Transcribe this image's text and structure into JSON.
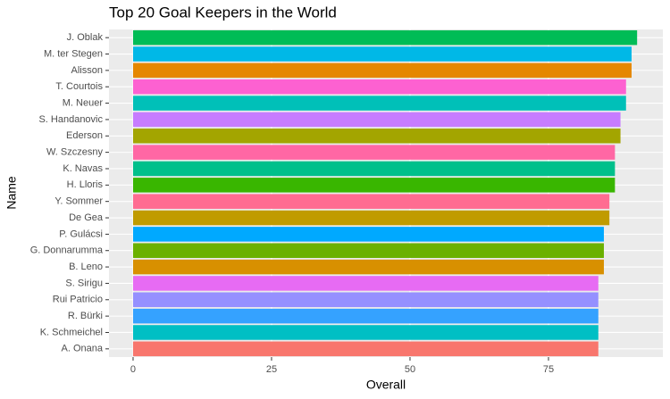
{
  "chart_data": {
    "type": "barh",
    "title": "Top 20 Goal Keepers in the World",
    "x_label": "Overall",
    "y_label": "Name",
    "categories": [
      "J. Oblak",
      "M. ter Stegen",
      "Alisson",
      "T. Courtois",
      "M. Neuer",
      "S. Handanovic",
      "Ederson",
      "W. Szczesny",
      "K. Navas",
      "H. Lloris",
      "Y. Sommer",
      "De Gea",
      "P. Gulácsi",
      "G. Donnarumma",
      "B. Leno",
      "S. Sirigu",
      "Rui Patricio",
      "R. Bürki",
      "K. Schmeichel",
      "A. Onana"
    ],
    "values": [
      91,
      90,
      90,
      89,
      89,
      88,
      88,
      87,
      87,
      87,
      86,
      86,
      85,
      85,
      85,
      84,
      84,
      84,
      84,
      84
    ],
    "colors": [
      "#00BC56",
      "#00B8E7",
      "#E58700",
      "#FD61D1",
      "#00C0B8",
      "#C77CFF",
      "#A3A500",
      "#FF67A4",
      "#00C08B",
      "#39B600",
      "#FF6C91",
      "#C09B00",
      "#00A9FF",
      "#6BB100",
      "#D89000",
      "#E76BF3",
      "#9590FF",
      "#35A2FF",
      "#00BFC4",
      "#F8766D"
    ],
    "xlim": [
      -4.35,
      95.65
    ],
    "xticks": [
      0,
      25,
      50,
      75
    ],
    "grid": true
  }
}
